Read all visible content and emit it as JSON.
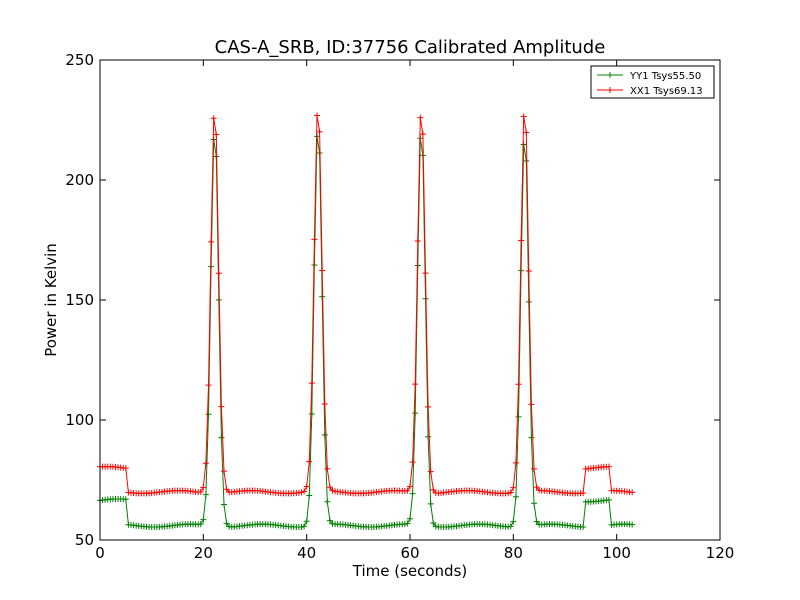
{
  "chart_data": {
    "type": "line",
    "title": "CAS-A_SRB, ID:37756 Calibrated Amplitude",
    "xlabel": "Time (seconds)",
    "ylabel": "Power in Kelvin",
    "xlim": [
      0,
      120
    ],
    "ylim": [
      50,
      250
    ],
    "xticks": [
      0,
      20,
      40,
      60,
      80,
      100,
      120
    ],
    "yticks": [
      50,
      100,
      150,
      200,
      250
    ],
    "grid": false,
    "legend_position": "top-right",
    "marker": "+",
    "series": [
      {
        "name": "YY1 Tsys55.50",
        "color": "#008000",
        "base": 56,
        "off_level": 66.5,
        "off_intervals": [
          [
            0,
            5
          ],
          [
            94,
            98.5
          ]
        ],
        "peaks": [
          {
            "center": 22.2,
            "height": 223
          },
          {
            "center": 42.2,
            "height": 224
          },
          {
            "center": 62.2,
            "height": 223
          },
          {
            "center": 82.2,
            "height": 221
          }
        ]
      },
      {
        "name": "XX1 Tsys69.13",
        "color": "#ff0000",
        "base": 70,
        "off_level": 80,
        "off_intervals": [
          [
            0,
            5
          ],
          [
            94,
            98.5
          ]
        ],
        "peaks": [
          {
            "center": 22.2,
            "height": 232
          },
          {
            "center": 42.2,
            "height": 232
          },
          {
            "center": 62.2,
            "height": 232
          },
          {
            "center": 82.2,
            "height": 232
          }
        ]
      }
    ],
    "x_range": [
      0,
      103
    ],
    "sample_step": 0.5
  }
}
